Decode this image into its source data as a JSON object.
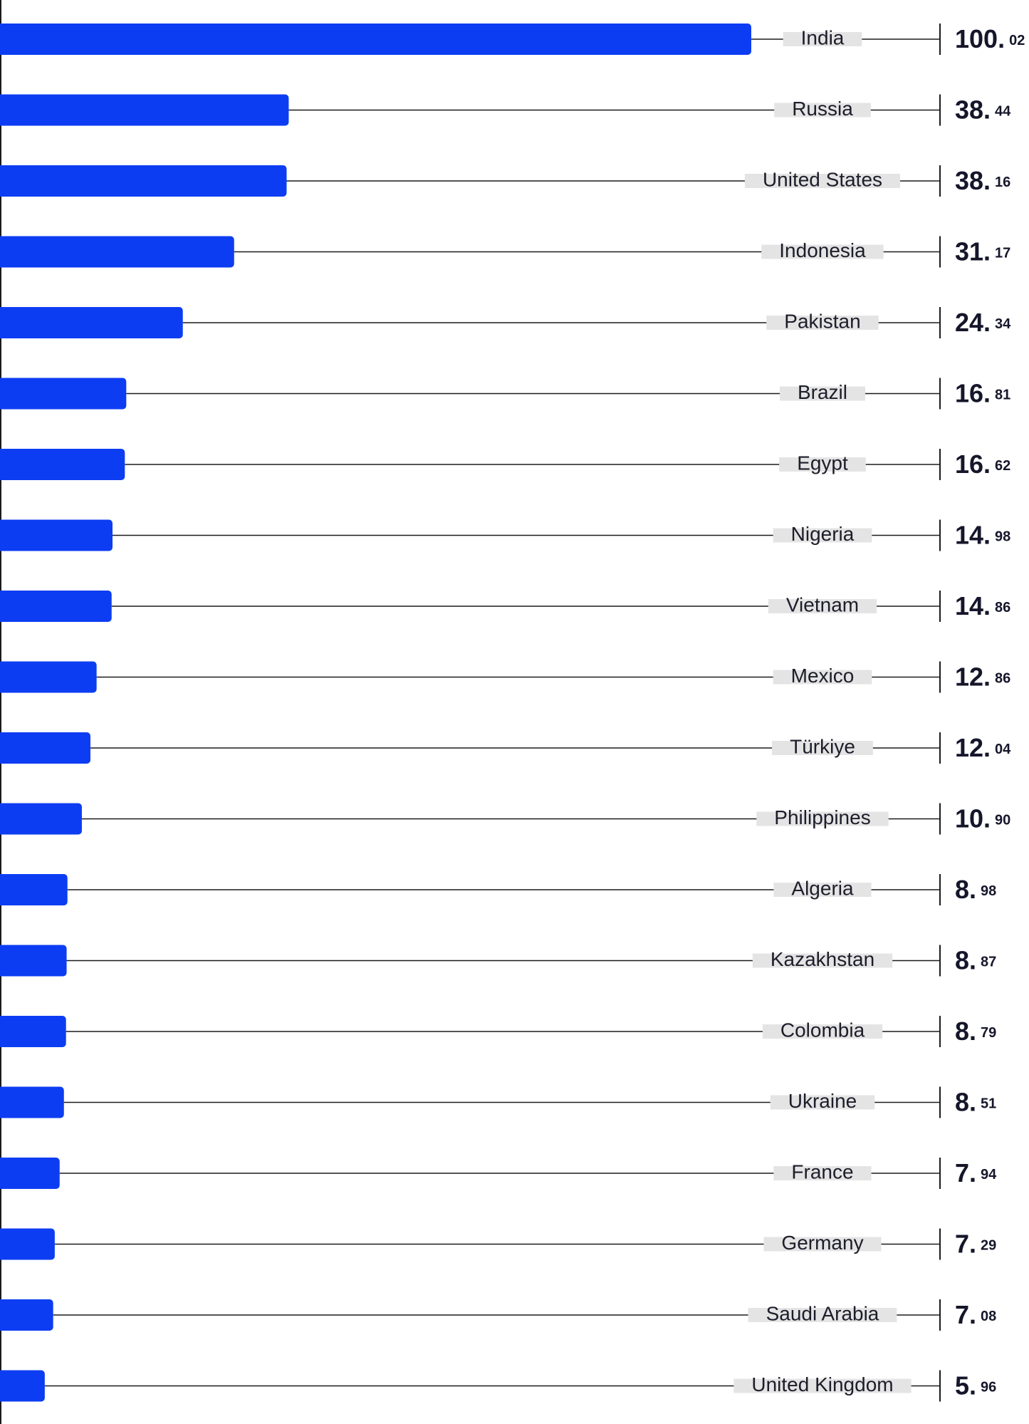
{
  "chart_data": {
    "type": "bar",
    "orientation": "horizontal",
    "bar_color": "#0d3df2",
    "label_bg_color": "#e4e4e4",
    "line_color": "#1b1b1b",
    "text_color": "#15162a",
    "xlim": [
      0,
      100.02
    ],
    "categories": [
      "India",
      "Russia",
      "United States",
      "Indonesia",
      "Pakistan",
      "Brazil",
      "Egypt",
      "Nigeria",
      "Vietnam",
      "Mexico",
      "Türkiye",
      "Philippines",
      "Algeria",
      "Kazakhstan",
      "Colombia",
      "Ukraine",
      "France",
      "Germany",
      "Saudi Arabia",
      "United Kingdom"
    ],
    "values": [
      100.02,
      38.44,
      38.16,
      31.17,
      24.34,
      16.81,
      16.62,
      14.98,
      14.86,
      12.86,
      12.04,
      10.9,
      8.98,
      8.87,
      8.79,
      8.51,
      7.94,
      7.29,
      7.08,
      5.96
    ],
    "value_int_labels": [
      "100.",
      "38.",
      "38.",
      "31.",
      "24.",
      "16.",
      "16.",
      "14.",
      "14.",
      "12.",
      "12.",
      "10.",
      "8.",
      "8.",
      "8.",
      "8.",
      "7.",
      "7.",
      "7.",
      "5."
    ],
    "value_dec_labels": [
      "02",
      "44",
      "16",
      "17",
      "34",
      "81",
      "62",
      "98",
      "86",
      "86",
      "04",
      "90",
      "98",
      "87",
      "79",
      "51",
      "94",
      "29",
      "08",
      "96"
    ]
  }
}
